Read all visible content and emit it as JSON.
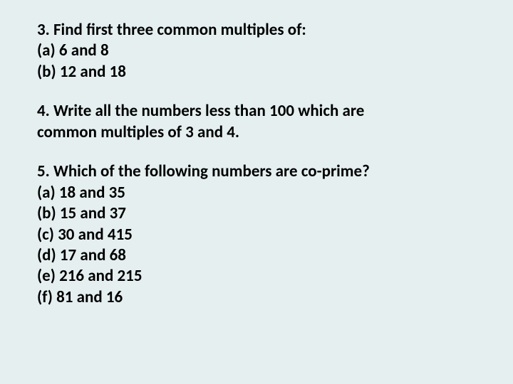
{
  "background_color": "#e5eff0",
  "text_color": "#000000",
  "font_size": 23,
  "font_weight": "bold",
  "questions": [
    {
      "lines": [
        "3. Find first three common multiples of:",
        "(a) 6 and 8",
        "(b) 12 and 18"
      ]
    },
    {
      "lines": [
        "4. Write all the numbers less than 100 which are",
        "common multiples of 3 and 4."
      ]
    },
    {
      "lines": [
        "5. Which of the following numbers are co-prime?",
        "(a) 18 and 35",
        "(b) 15 and 37",
        "(c) 30 and 415",
        "(d) 17 and 68",
        "(e) 216 and 215",
        "(f) 81 and 16"
      ]
    }
  ]
}
